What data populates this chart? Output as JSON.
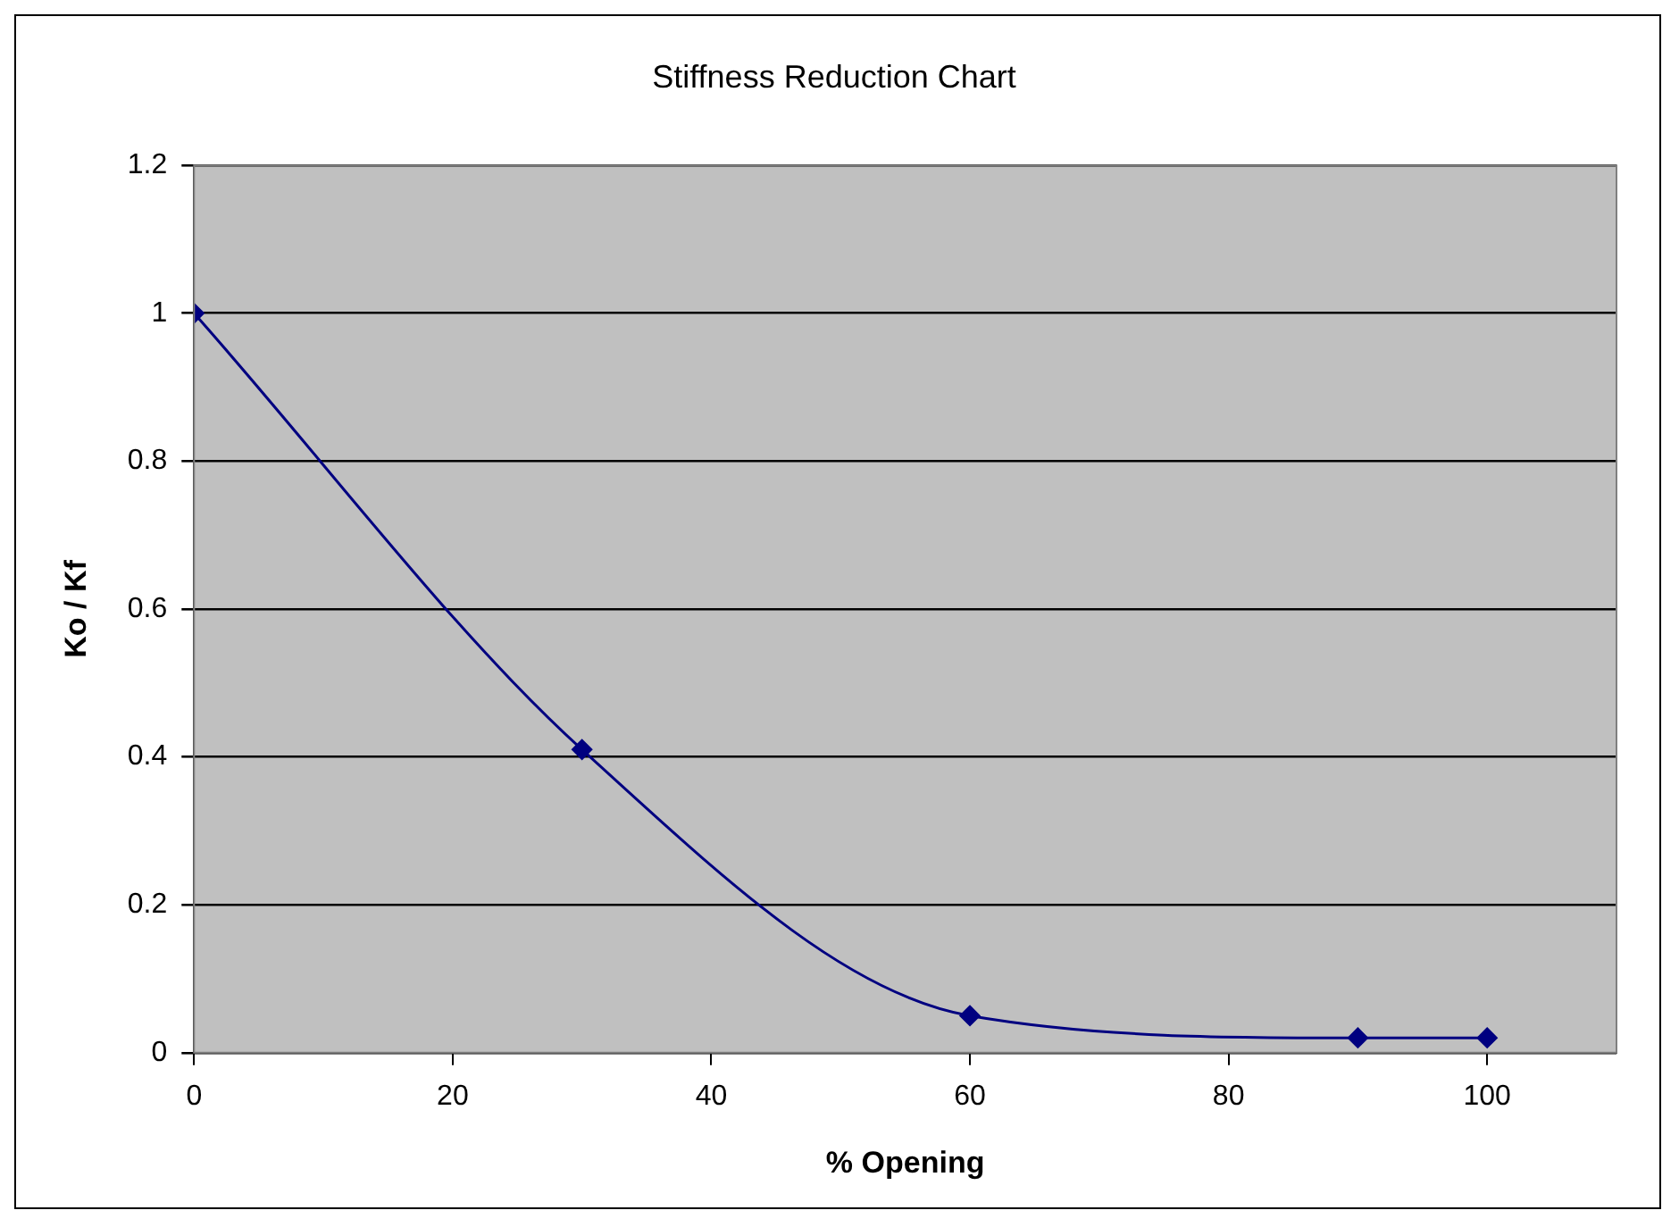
{
  "chart_data": {
    "type": "line",
    "title": "Stiffness Reduction Chart",
    "xlabel": "% Opening",
    "ylabel": "Ko / Kf",
    "x": [
      0,
      30,
      60,
      90,
      100
    ],
    "series": [
      {
        "color": "#000080",
        "values": [
          1,
          0.41,
          0.05,
          0.02,
          0.02
        ]
      }
    ],
    "xlim": [
      0,
      110
    ],
    "xticks": [
      0,
      20,
      40,
      60,
      80,
      100
    ],
    "ylim": [
      0,
      1.2
    ],
    "yticks": [
      0,
      0.2,
      0.4,
      0.6,
      0.8,
      1,
      1.2
    ],
    "grid": "y",
    "legend": false,
    "marker": "diamond",
    "line_style": "solid"
  }
}
